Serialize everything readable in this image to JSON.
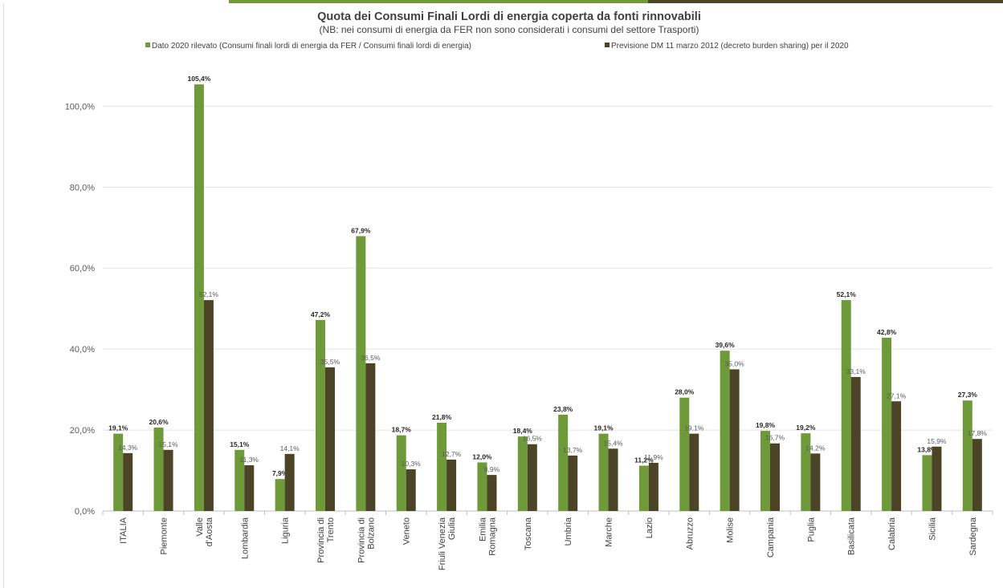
{
  "chart_data": {
    "type": "bar",
    "title": "Quota dei Consumi Finali Lordi di energia coperta da fonti rinnovabili",
    "subtitle": "(NB: nei consumi di energia da FER non sono considerati  i consumi del settore Trasporti)",
    "categories": [
      "ITALIA",
      "Piemonte",
      "Valle d'Aosta",
      "Lombardia",
      "Liguria",
      "Provincia di Trento",
      "Provincia di Bolzano",
      "Veneto",
      "Friuli Venezia Giulia",
      "Emilia Romagna",
      "Toscana",
      "Umbria",
      "Marche",
      "Lazio",
      "Abruzzo",
      "Molise",
      "Campania",
      "Puglia",
      "Basilicata",
      "Calabria",
      "Sicilia",
      "Sardegna"
    ],
    "series": [
      {
        "name": "Dato 2020 rilevato (Consumi finali lordi di energia da FER / Consumi finali lordi di energia)",
        "color": "#6f9a3a",
        "values": [
          19.1,
          20.6,
          105.4,
          15.1,
          7.9,
          47.2,
          67.9,
          18.7,
          21.8,
          12.0,
          18.4,
          23.8,
          19.1,
          11.2,
          28.0,
          39.6,
          19.8,
          19.2,
          52.1,
          42.8,
          13.8,
          27.3
        ],
        "labels": [
          "19,1%",
          "20,6%",
          "105,4%",
          "15,1%",
          "7,9%",
          "47,2%",
          "67,9%",
          "18,7%",
          "21,8%",
          "12,0%",
          "18,4%",
          "23,8%",
          "19,1%",
          "11,2%",
          "28,0%",
          "39,6%",
          "19,8%",
          "19,2%",
          "52,1%",
          "42,8%",
          "13,8%",
          "27,3%"
        ]
      },
      {
        "name": "Previsione DM 11 marzo 2012 (decreto burden sharing) per il 2020",
        "color": "#4c4427",
        "values": [
          14.3,
          15.1,
          52.1,
          11.3,
          14.1,
          35.5,
          36.5,
          10.3,
          12.7,
          8.9,
          16.5,
          13.7,
          15.4,
          11.9,
          19.1,
          35.0,
          16.7,
          14.2,
          33.1,
          27.1,
          15.9,
          17.8
        ],
        "labels": [
          "14,3%",
          "15,1%",
          "52,1%",
          "11,3%",
          "14,1%",
          "35,5%",
          "36,5%",
          "10,3%",
          "12,7%",
          "8,9%",
          "16,5%",
          "13,7%",
          "15,4%",
          "11,9%",
          "19,1%",
          "35,0%",
          "16,7%",
          "14,2%",
          "33,1%",
          "27,1%",
          "15,9%",
          "17,8%"
        ]
      }
    ],
    "ylim": [
      0,
      110
    ],
    "yticks": [
      "0,0%",
      "20,0%",
      "40,0%",
      "60,0%",
      "80,0%",
      "100,0%"
    ],
    "grid": true,
    "legend": "top"
  }
}
